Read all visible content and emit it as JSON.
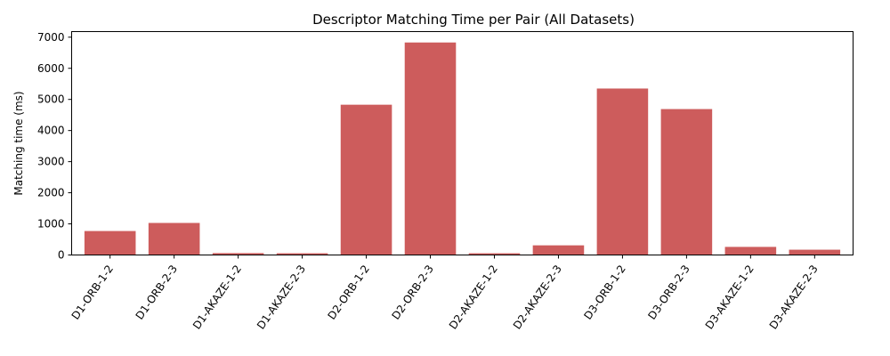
{
  "chart_data": {
    "type": "bar",
    "title": "Descriptor Matching Time per Pair (All Datasets)",
    "xlabel": "",
    "ylabel": "Matching time (ms)",
    "ylim": [
      0,
      7180
    ],
    "yticks": [
      0,
      1000,
      2000,
      3000,
      4000,
      5000,
      6000,
      7000
    ],
    "grid": false,
    "legend": "none",
    "bar_color": "#cd5c5c",
    "categories": [
      "D1-ORB-1-2",
      "D1-ORB-2-3",
      "D1-AKAZE-1-2",
      "D1-AKAZE-2-3",
      "D2-ORB-1-2",
      "D2-ORB-2-3",
      "D2-AKAZE-1-2",
      "D2-AKAZE-2-3",
      "D3-ORB-1-2",
      "D3-ORB-2-3",
      "D3-AKAZE-1-2",
      "D3-AKAZE-2-3"
    ],
    "values": [
      770,
      1030,
      60,
      55,
      4830,
      6830,
      55,
      310,
      5350,
      4690,
      260,
      170
    ]
  }
}
